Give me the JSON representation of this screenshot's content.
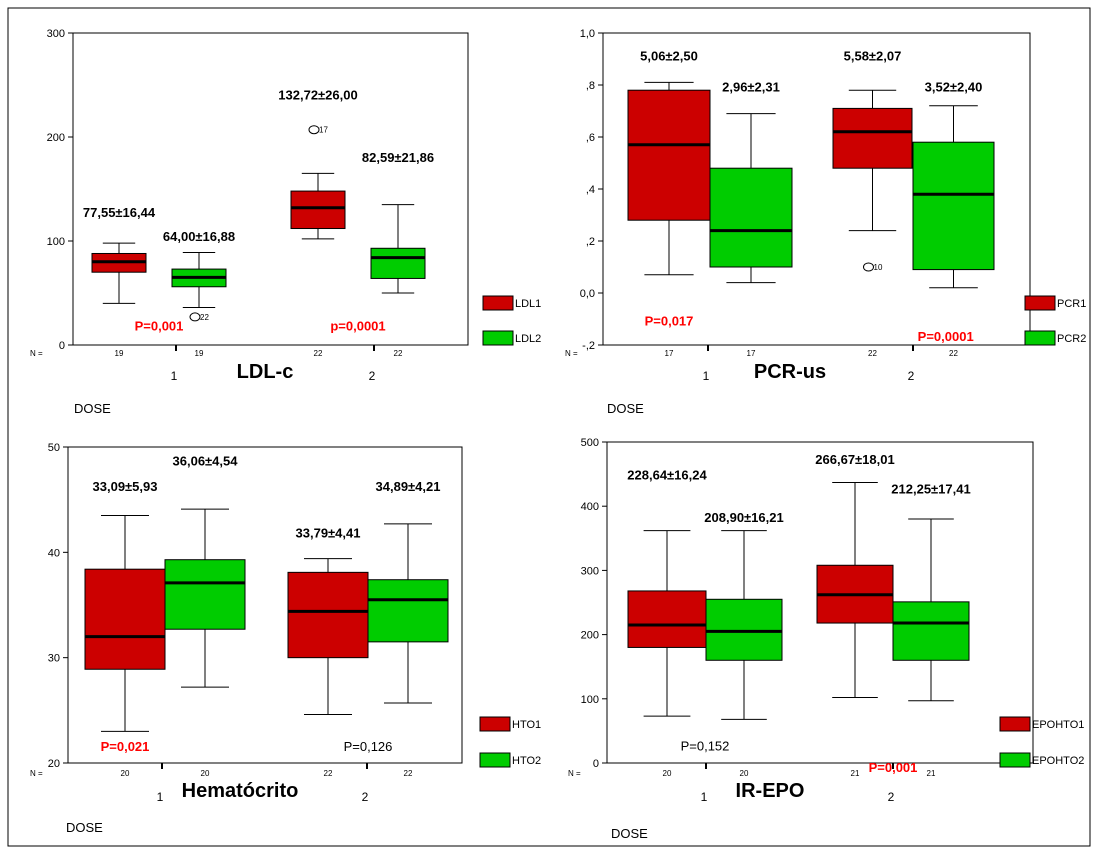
{
  "chart_data": [
    {
      "type": "boxplot",
      "title": "LDL-c",
      "xlabel": "DOSE",
      "ylabel": "",
      "ylim": [
        0,
        300
      ],
      "yticks": [
        "0",
        "100",
        "200",
        "300"
      ],
      "categories": [
        "1",
        "2"
      ],
      "n_prefix": "N =",
      "n_values": [
        "19",
        "19",
        "22",
        "22"
      ],
      "series": [
        {
          "name": "LDL1",
          "color": "#cc0000",
          "boxes": [
            {
              "min": 40,
              "q1": 70,
              "median": 80,
              "q3": 88,
              "max": 98
            },
            {
              "min": 102,
              "q1": 112,
              "median": 132,
              "q3": 148,
              "max": 165
            }
          ]
        },
        {
          "name": "LDL2",
          "color": "#00cc00",
          "boxes": [
            {
              "min": 36,
              "q1": 56,
              "median": 65,
              "q3": 73,
              "max": 89
            },
            {
              "min": 50,
              "q1": 64,
              "median": 84,
              "q3": 93,
              "max": 135
            }
          ]
        }
      ],
      "outliers": [
        {
          "series": 0,
          "group": 1,
          "value": 207,
          "label": "17"
        },
        {
          "series": 1,
          "group": 0,
          "value": 27,
          "label": "22"
        }
      ],
      "annotations": [
        {
          "text": "77,55±16,44",
          "group": 0,
          "series": 0,
          "y": 127,
          "color": "#000000",
          "bold": true
        },
        {
          "text": "64,00±16,88",
          "group": 0,
          "series": 1,
          "y": 104,
          "color": "#000000",
          "bold": true
        },
        {
          "text": "132,72±26,00",
          "group": 1,
          "series": 0,
          "y": 240,
          "color": "#000000",
          "bold": true
        },
        {
          "text": "82,59±21,86",
          "group": 1,
          "series": 1,
          "y": 180,
          "color": "#000000",
          "bold": true
        },
        {
          "text": "P=0,001",
          "group": 0,
          "series": 0.5,
          "y": 18,
          "color": "#ff0000",
          "bold": true
        },
        {
          "text": "p=0,0001",
          "group": 1,
          "series": 0.5,
          "y": 18,
          "color": "#ff0000",
          "bold": true
        }
      ]
    },
    {
      "type": "boxplot",
      "title": "PCR-us",
      "xlabel": "DOSE",
      "ylabel": "",
      "ylim": [
        -0.2,
        1.0
      ],
      "yticks": [
        "-,2",
        "0,0",
        ",2",
        ",4",
        ",6",
        ",8",
        "1,0"
      ],
      "categories": [
        "1",
        "2"
      ],
      "n_prefix": "N =",
      "n_values": [
        "17",
        "17",
        "22",
        "22"
      ],
      "series": [
        {
          "name": "PCR1",
          "color": "#cc0000",
          "boxes": [
            {
              "min": 0.07,
              "q1": 0.28,
              "median": 0.57,
              "q3": 0.78,
              "max": 0.81
            },
            {
              "min": 0.24,
              "q1": 0.48,
              "median": 0.62,
              "q3": 0.71,
              "max": 0.78
            }
          ]
        },
        {
          "name": "PCR2",
          "color": "#00cc00",
          "boxes": [
            {
              "min": 0.04,
              "q1": 0.1,
              "median": 0.24,
              "q3": 0.48,
              "max": 0.69
            },
            {
              "min": 0.02,
              "q1": 0.09,
              "median": 0.38,
              "q3": 0.58,
              "max": 0.72
            }
          ]
        }
      ],
      "outliers": [
        {
          "series": 0,
          "group": 1,
          "value": 0.1,
          "label": "10"
        }
      ],
      "annotations": [
        {
          "text": "5,06±2,50",
          "group": 0,
          "series": 0,
          "y": 0.91,
          "color": "#000000",
          "bold": true
        },
        {
          "text": "2,96±2,31",
          "group": 0,
          "series": 1,
          "y": 0.79,
          "color": "#000000",
          "bold": true
        },
        {
          "text": "5,58±2,07",
          "group": 1,
          "series": 0,
          "y": 0.91,
          "color": "#000000",
          "bold": true
        },
        {
          "text": "3,52±2,40",
          "group": 1,
          "series": 1,
          "y": 0.79,
          "color": "#000000",
          "bold": true
        },
        {
          "text": "P=0,017",
          "group": 0,
          "series": 0,
          "y": -0.11,
          "color": "#ff0000",
          "bold": true
        },
        {
          "text": "P=0,0001",
          "group": 1,
          "series": 0.7,
          "y": -0.17,
          "color": "#ff0000",
          "bold": true
        }
      ]
    },
    {
      "type": "boxplot",
      "title": "Hematócrito",
      "xlabel": "DOSE",
      "ylabel": "",
      "ylim": [
        20,
        50
      ],
      "yticks": [
        "20",
        "30",
        "40",
        "50"
      ],
      "categories": [
        "1",
        "2"
      ],
      "n_prefix": "N =",
      "n_values": [
        "20",
        "20",
        "22",
        "22"
      ],
      "series": [
        {
          "name": "HTO1",
          "color": "#cc0000",
          "boxes": [
            {
              "min": 23.0,
              "q1": 28.9,
              "median": 32.0,
              "q3": 38.4,
              "max": 43.5
            },
            {
              "min": 24.6,
              "q1": 30.0,
              "median": 34.4,
              "q3": 38.1,
              "max": 39.4
            }
          ]
        },
        {
          "name": "HTO2",
          "color": "#00cc00",
          "boxes": [
            {
              "min": 27.2,
              "q1": 32.7,
              "median": 37.1,
              "q3": 39.3,
              "max": 44.1
            },
            {
              "min": 25.7,
              "q1": 31.5,
              "median": 35.5,
              "q3": 37.4,
              "max": 42.7
            }
          ]
        }
      ],
      "outliers": [],
      "annotations": [
        {
          "text": "33,09±5,93",
          "group": 0,
          "series": 0,
          "y": 46.2,
          "color": "#000000",
          "bold": true
        },
        {
          "text": "36,06±4,54",
          "group": 0,
          "series": 1,
          "y": 48.6,
          "color": "#000000",
          "bold": true
        },
        {
          "text": "33,79±4,41",
          "group": 1,
          "series": 0,
          "y": 41.8,
          "color": "#000000",
          "bold": true
        },
        {
          "text": "34,89±4,21",
          "group": 1,
          "series": 1,
          "y": 46.2,
          "color": "#000000",
          "bold": true
        },
        {
          "text": "P=0,021",
          "group": 0,
          "series": 0,
          "y": 21.5,
          "color": "#ff0000",
          "bold": true
        },
        {
          "text": "P=0,126",
          "group": 1,
          "series": 0.5,
          "y": 21.5,
          "color": "#000000",
          "bold": false
        }
      ]
    },
    {
      "type": "boxplot",
      "title": "IR-EPO",
      "xlabel": "DOSE",
      "ylabel": "",
      "ylim": [
        0,
        500
      ],
      "yticks": [
        "0",
        "100",
        "200",
        "300",
        "400",
        "500"
      ],
      "categories": [
        "1",
        "2"
      ],
      "n_prefix": "N =",
      "n_values": [
        "20",
        "20",
        "21",
        "21"
      ],
      "series": [
        {
          "name": "EPOHTO1",
          "color": "#cc0000",
          "boxes": [
            {
              "min": 73,
              "q1": 180,
              "median": 215,
              "q3": 268,
              "max": 362
            },
            {
              "min": 102,
              "q1": 218,
              "median": 262,
              "q3": 308,
              "max": 437
            }
          ]
        },
        {
          "name": "EPOHTO2",
          "color": "#00cc00",
          "boxes": [
            {
              "min": 68,
              "q1": 160,
              "median": 205,
              "q3": 255,
              "max": 362
            },
            {
              "min": 97,
              "q1": 160,
              "median": 218,
              "q3": 251,
              "max": 380
            }
          ]
        }
      ],
      "outliers": [],
      "annotations": [
        {
          "text": "228,64±16,24",
          "group": 0,
          "series": 0,
          "y": 448,
          "color": "#000000",
          "bold": true
        },
        {
          "text": "208,90±16,21",
          "group": 0,
          "series": 1,
          "y": 382,
          "color": "#000000",
          "bold": true
        },
        {
          "text": "266,67±18,01",
          "group": 1,
          "series": 0,
          "y": 472,
          "color": "#000000",
          "bold": true
        },
        {
          "text": "212,25±17,41",
          "group": 1,
          "series": 1,
          "y": 426,
          "color": "#000000",
          "bold": true
        },
        {
          "text": "P=0,152",
          "group": 0,
          "series": 0.5,
          "y": 26,
          "color": "#000000",
          "bold": false
        },
        {
          "text": "P=0,001",
          "group": 1,
          "series": 0.5,
          "y": -8,
          "color": "#ff0000",
          "bold": true
        }
      ]
    }
  ]
}
